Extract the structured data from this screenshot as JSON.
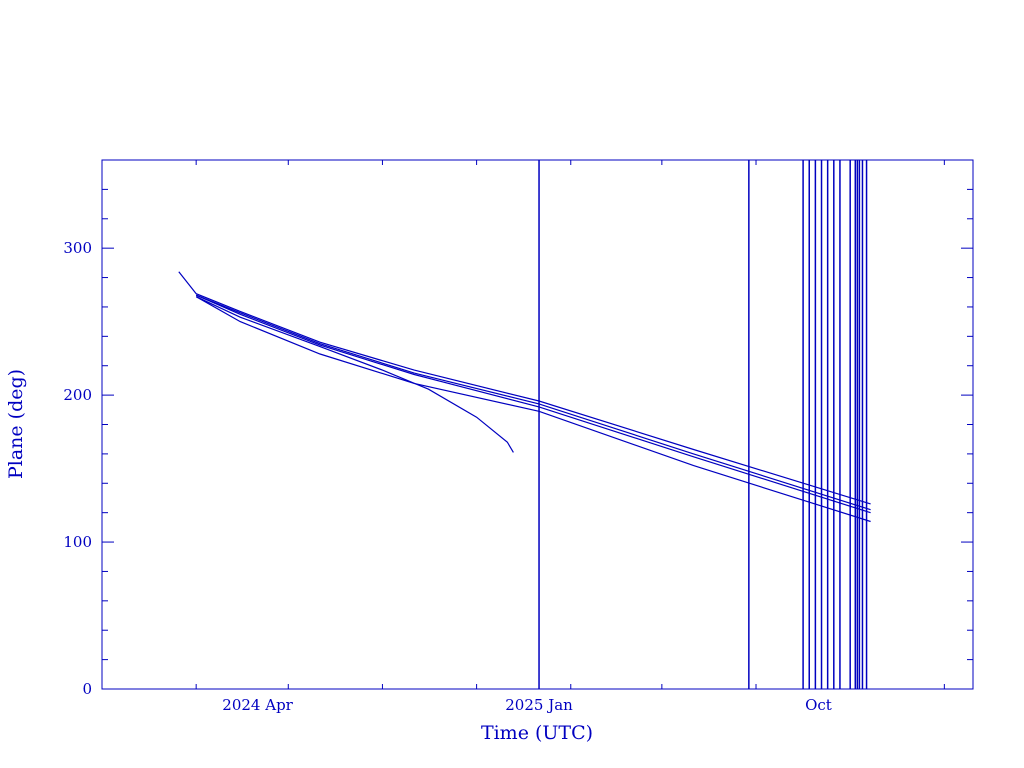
{
  "chart_data": {
    "type": "line",
    "title": "",
    "xlabel": "Time (UTC)",
    "ylabel": "Plane (deg)",
    "ylim": [
      0,
      360
    ],
    "xlim": [
      "2023-11-01",
      "2026-03-01"
    ],
    "color": "#0000c0",
    "grid": false,
    "legend": "none",
    "x_ticks": [
      {
        "date": "2024-04-01",
        "label": "2024 Apr"
      },
      {
        "date": "2025-01-01",
        "label": "2025 Jan"
      },
      {
        "date": "2025-10-01",
        "label": "Oct"
      }
    ],
    "y_ticks": [
      0,
      100,
      200,
      300
    ],
    "series": [
      {
        "x": [
          "2024-01-15",
          "2024-02-01",
          "2024-03-15",
          "2024-06-01",
          "2024-09-01",
          "2025-01-01",
          "2025-06-01",
          "2025-11-21"
        ],
        "y": [
          284,
          269,
          257,
          236,
          217,
          196,
          163,
          126
        ]
      },
      {
        "x": [
          "2024-02-01",
          "2024-03-15",
          "2024-06-01",
          "2024-09-01",
          "2025-01-01",
          "2025-06-01",
          "2025-11-21"
        ],
        "y": [
          268,
          256,
          235,
          215,
          194,
          160,
          122
        ]
      },
      {
        "x": [
          "2024-02-01",
          "2024-03-15",
          "2024-06-01",
          "2024-09-01",
          "2025-01-01",
          "2025-06-01",
          "2025-11-21"
        ],
        "y": [
          268,
          255,
          234,
          214,
          192,
          158,
          120
        ]
      },
      {
        "x": [
          "2024-02-01",
          "2024-03-15",
          "2024-06-01",
          "2024-09-01",
          "2025-01-01",
          "2025-06-01",
          "2025-11-21"
        ],
        "y": [
          267,
          250,
          228,
          208,
          189,
          152,
          114
        ]
      },
      {
        "x": [
          "2024-02-01",
          "2024-03-15",
          "2024-06-01",
          "2024-08-01",
          "2024-09-15",
          "2024-11-01",
          "2024-12-01",
          "2024-12-07"
        ],
        "y": [
          267,
          253,
          233,
          217,
          204,
          185,
          168,
          161
        ]
      }
    ],
    "vertical_lines": [
      "2025-01-01",
      "2025-07-25",
      "2025-09-16",
      "2025-09-22",
      "2025-09-28",
      "2025-10-04",
      "2025-10-10",
      "2025-10-16",
      "2025-10-22",
      "2025-11-01",
      "2025-11-06",
      "2025-11-08",
      "2025-11-10",
      "2025-11-13",
      "2025-11-17"
    ]
  }
}
